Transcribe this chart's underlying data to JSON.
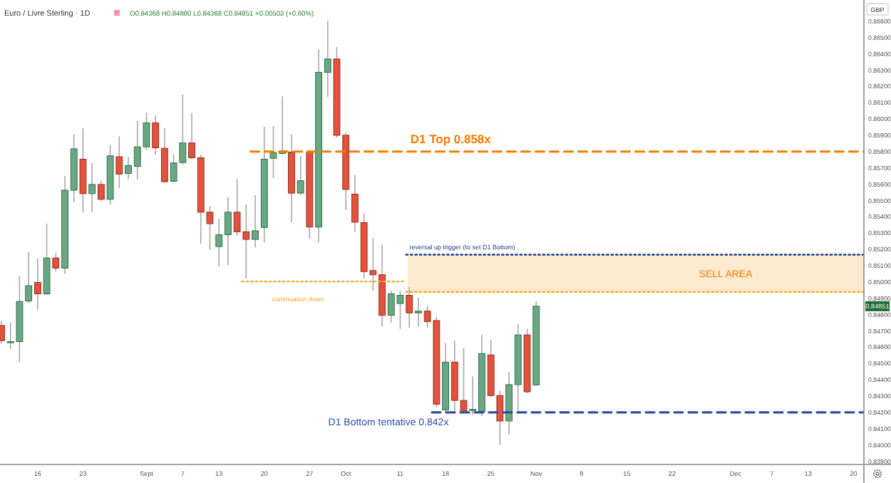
{
  "chart_data": {
    "type": "candlestick",
    "title": "Euro / Livre Sterling · 1D",
    "subtitle": "O0.84368 H0.84880 L0.84368 C0.84851 +0.00502 (+0.60%)",
    "categories": [
      null,
      null,
      null,
      null,
      "16",
      null,
      null,
      null,
      null,
      "23",
      null,
      null,
      null,
      null,
      null,
      null,
      "Sept",
      null,
      null,
      null,
      "7",
      null,
      null,
      null,
      "13",
      null,
      null,
      null,
      null,
      "20",
      null,
      null,
      null,
      null,
      "27",
      null,
      null,
      null,
      "Oct",
      null,
      null,
      null,
      null,
      null,
      "11",
      null,
      null,
      null,
      null,
      "18",
      null,
      null,
      null,
      null,
      "25",
      null,
      null,
      null,
      null,
      "Nov",
      null,
      null,
      null,
      null,
      "8",
      null,
      null,
      null,
      null,
      "15",
      null,
      null,
      null,
      null,
      "22",
      null,
      null,
      null,
      null,
      null,
      null,
      "Dec",
      null,
      null,
      null,
      "7",
      null,
      null,
      null,
      "13",
      null,
      null,
      null,
      null,
      "20",
      null
    ],
    "ohlc": [
      [
        0.84733,
        0.8476,
        0.8462,
        0.8464
      ],
      [
        0.84628,
        0.8475,
        0.8459,
        0.84634
      ],
      [
        0.84634,
        0.85035,
        0.84508,
        0.8488
      ],
      [
        0.84883,
        0.85182,
        0.8487,
        0.84977
      ],
      [
        0.84997,
        0.85144,
        0.8483,
        0.84927
      ],
      [
        0.84927,
        0.85358,
        0.8492,
        0.85147
      ],
      [
        0.85147,
        0.8518,
        0.85064,
        0.85085
      ],
      [
        0.85085,
        0.8565,
        0.8505,
        0.85563
      ],
      [
        0.85563,
        0.85905,
        0.85489,
        0.85817
      ],
      [
        0.85753,
        0.85944,
        0.85425,
        0.85542
      ],
      [
        0.85542,
        0.8573,
        0.8543,
        0.85598
      ],
      [
        0.85598,
        0.8562,
        0.855,
        0.85507
      ],
      [
        0.85507,
        0.85841,
        0.85475,
        0.85774
      ],
      [
        0.85768,
        0.85894,
        0.85577,
        0.85662
      ],
      [
        0.85665,
        0.85768,
        0.8563,
        0.85715
      ],
      [
        0.85709,
        0.85988,
        0.8563,
        0.85829
      ],
      [
        0.85829,
        0.8604,
        0.8581,
        0.85976
      ],
      [
        0.85976,
        0.86023,
        0.85782,
        0.85823
      ],
      [
        0.8582,
        0.85944,
        0.8561,
        0.85615
      ],
      [
        0.85618,
        0.85782,
        0.8561,
        0.8573
      ],
      [
        0.85733,
        0.86149,
        0.8572,
        0.85853
      ],
      [
        0.85853,
        0.86037,
        0.85753,
        0.85762
      ],
      [
        0.85762,
        0.85782,
        0.85234,
        0.85428
      ],
      [
        0.85428,
        0.85466,
        0.85196,
        0.85358
      ],
      [
        0.85217,
        0.85387,
        0.85094,
        0.8529
      ],
      [
        0.8529,
        0.85519,
        0.85103,
        0.85428
      ],
      [
        0.85428,
        0.8563,
        0.85284,
        0.85308
      ],
      [
        0.85308,
        0.85475,
        0.85021,
        0.85261
      ],
      [
        0.85261,
        0.85533,
        0.85211,
        0.85314
      ],
      [
        0.85334,
        0.85952,
        0.8524,
        0.85753
      ],
      [
        0.85759,
        0.85958,
        0.85636,
        0.85794
      ],
      [
        0.85788,
        0.8614,
        0.85782,
        0.85803
      ],
      [
        0.85797,
        0.85905,
        0.85364,
        0.85545
      ],
      [
        0.85545,
        0.85774,
        0.85533,
        0.85621
      ],
      [
        0.85797,
        0.8581,
        0.85267,
        0.85337
      ],
      [
        0.85337,
        0.86427,
        0.8524,
        0.86286
      ],
      [
        0.86286,
        0.86603,
        0.86134,
        0.86368
      ],
      [
        0.86368,
        0.86442,
        0.85885,
        0.859
      ],
      [
        0.859,
        0.85915,
        0.8544,
        0.85568
      ],
      [
        0.85539,
        0.85656,
        0.85308,
        0.85367
      ],
      [
        0.85364,
        0.8542,
        0.85021,
        0.85064
      ],
      [
        0.8507,
        0.8527,
        0.84947,
        0.85044
      ],
      [
        0.85044,
        0.85226,
        0.84727,
        0.84795
      ],
      [
        0.84795,
        0.84947,
        0.84751,
        0.84927
      ],
      [
        0.84868,
        0.84944,
        0.84713,
        0.84918
      ],
      [
        0.84918,
        0.84968,
        0.84719,
        0.8481
      ],
      [
        0.8481,
        0.84903,
        0.84727,
        0.84821
      ],
      [
        0.84821,
        0.84853,
        0.84722,
        0.84757
      ],
      [
        0.84763,
        0.84786,
        0.8423,
        0.8425
      ],
      [
        0.84215,
        0.84625,
        0.842,
        0.84508
      ],
      [
        0.84508,
        0.8464,
        0.842,
        0.84273
      ],
      [
        0.84273,
        0.84593,
        0.842,
        0.84209
      ],
      [
        0.84212,
        0.8442,
        0.84185,
        0.84218
      ],
      [
        0.84206,
        0.84675,
        0.84177,
        0.8456
      ],
      [
        0.84552,
        0.84645,
        0.84294,
        0.84303
      ],
      [
        0.84303,
        0.84332,
        0.84,
        0.84147
      ],
      [
        0.84147,
        0.84449,
        0.84062,
        0.8437
      ],
      [
        0.8437,
        0.84742,
        0.84209,
        0.84675
      ],
      [
        0.84675,
        0.84713,
        0.84315,
        0.84326
      ],
      [
        0.84368,
        0.8488,
        0.84368,
        0.84851
      ],
      null,
      null,
      null,
      null,
      null,
      null,
      null,
      null,
      null,
      null,
      null,
      null,
      null,
      null,
      null,
      null,
      null,
      null,
      null,
      null,
      null,
      null,
      null,
      null,
      null,
      null,
      null,
      null,
      null,
      null,
      null,
      null,
      null,
      null,
      null,
      null
    ],
    "ylim": [
      0.8388,
      0.8673
    ],
    "yticks": [
      {
        "value": 0.839,
        "label": "0.83900"
      },
      {
        "value": 0.84,
        "label": "0.84000"
      },
      {
        "value": 0.841,
        "label": "0.84100"
      },
      {
        "value": 0.842,
        "label": "0.84200"
      },
      {
        "value": 0.843,
        "label": "0.84300"
      },
      {
        "value": 0.844,
        "label": "0.84400"
      },
      {
        "value": 0.845,
        "label": "0.84500"
      },
      {
        "value": 0.846,
        "label": "0.84600"
      },
      {
        "value": 0.847,
        "label": "0.84700"
      },
      {
        "value": 0.848,
        "label": "0.84800"
      },
      {
        "value": 0.849,
        "label": "0.84900"
      },
      {
        "value": 0.85,
        "label": "0.85000"
      },
      {
        "value": 0.851,
        "label": "0.85100"
      },
      {
        "value": 0.852,
        "label": "0.85200"
      },
      {
        "value": 0.853,
        "label": "0.85300"
      },
      {
        "value": 0.854,
        "label": "0.85400"
      },
      {
        "value": 0.855,
        "label": "0.85500"
      },
      {
        "value": 0.856,
        "label": "0.85600"
      },
      {
        "value": 0.857,
        "label": "0.85700"
      },
      {
        "value": 0.858,
        "label": "0.85800"
      },
      {
        "value": 0.859,
        "label": "0.85900"
      },
      {
        "value": 0.86,
        "label": "0.86000"
      },
      {
        "value": 0.861,
        "label": "0.86100"
      },
      {
        "value": 0.862,
        "label": "0.86200"
      },
      {
        "value": 0.863,
        "label": "0.86300"
      },
      {
        "value": 0.864,
        "label": "0.86400"
      },
      {
        "value": 0.865,
        "label": "0.86500"
      },
      {
        "value": 0.866,
        "label": "0.86600"
      }
    ],
    "ref_lines": [
      {
        "axis": "y",
        "value": 0.858,
        "label": "D1 Top 0.858x",
        "color": "#f57c00",
        "line_style": "dashed"
      },
      {
        "axis": "y",
        "value": 0.85167,
        "label": "reversal up trigger (to set D1 Bottom)",
        "color": "#1a3a8f",
        "line_style": "dotted"
      },
      {
        "axis": "y",
        "value": 0.85003,
        "label": "continuation down",
        "color": "#f9a825",
        "line_style": "dotted"
      },
      {
        "axis": "y",
        "value": 0.84939,
        "label": null,
        "color": "#f9a825",
        "line_style": "dotted"
      },
      {
        "axis": "y",
        "value": 0.842,
        "label": "D1 Bottom tentative 0.842x",
        "color": "#2a4fa0",
        "line_style": "dashed"
      }
    ],
    "bands": [
      {
        "axis": "y",
        "from": 0.84939,
        "to": 0.85167,
        "label": "SELL AREA",
        "color": "#fde8c8"
      }
    ],
    "annotations": [
      "GBP",
      {
        "text": "0.84851",
        "y": 0.84851
      }
    ]
  }
}
